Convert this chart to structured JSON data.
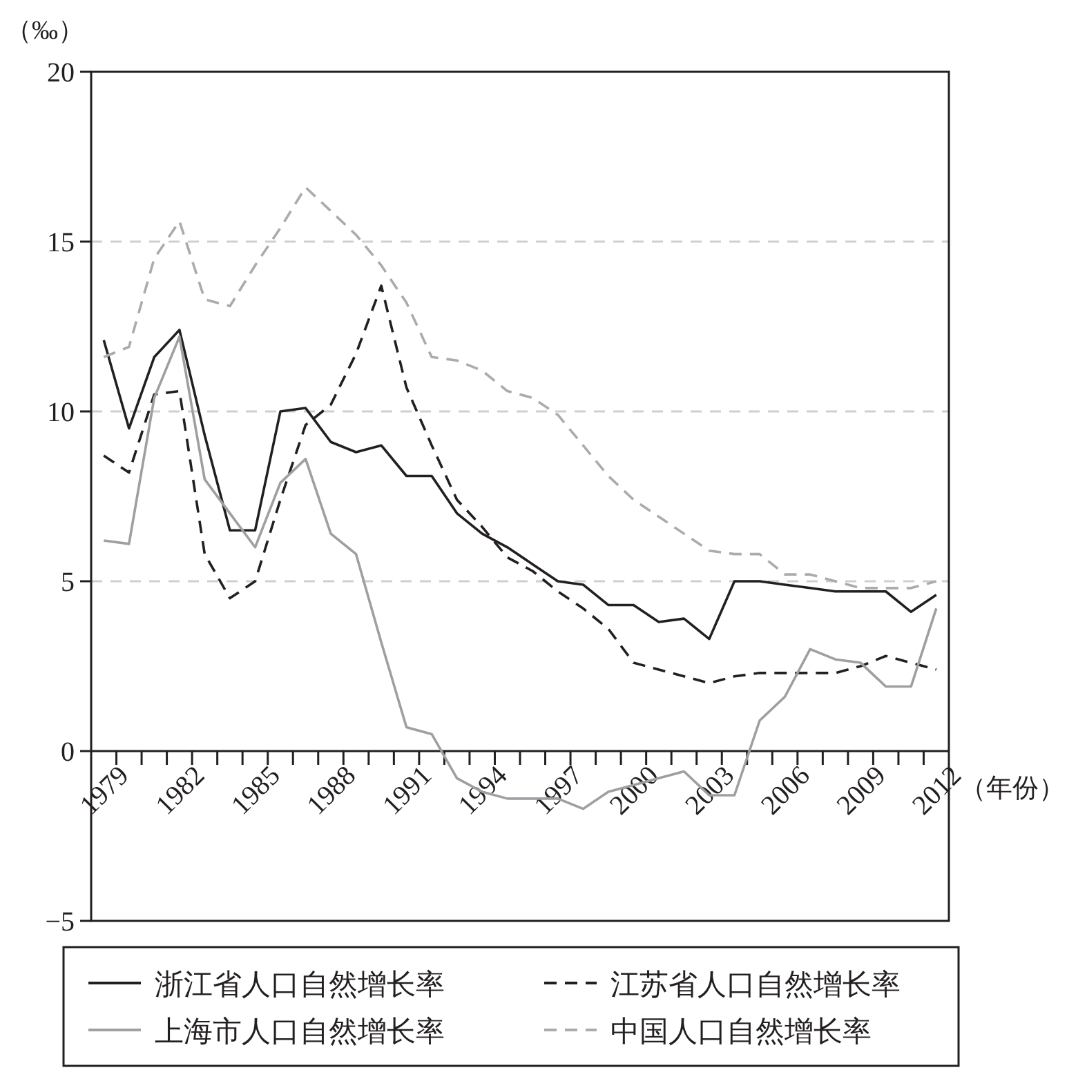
{
  "chart_data": {
    "type": "line",
    "ylabel": "（‰）",
    "xlabel": "（年份）",
    "categories": [
      "1979",
      null,
      null,
      "1982",
      null,
      null,
      "1985",
      null,
      null,
      "1988",
      null,
      null,
      "1991",
      null,
      null,
      "1994",
      null,
      null,
      "1997",
      null,
      null,
      "2000",
      null,
      null,
      "2003",
      null,
      null,
      "2006",
      null,
      null,
      "2009",
      null,
      null,
      "2012"
    ],
    "series": [
      {
        "name": "浙江省人口自然增长率",
        "color": "#231f20",
        "line_style": "solid",
        "values": [
          12.1,
          9.5,
          11.6,
          12.4,
          9.3,
          6.5,
          6.5,
          10.0,
          10.1,
          9.1,
          8.8,
          9.0,
          8.1,
          8.1,
          7.0,
          6.4,
          6.0,
          5.5,
          5.0,
          4.9,
          4.3,
          4.3,
          3.8,
          3.9,
          3.3,
          5.0,
          5.0,
          4.9,
          4.8,
          4.7,
          4.7,
          4.7,
          4.1,
          4.6
        ]
      },
      {
        "name": "江苏省人口自然增长率",
        "color": "#231f20",
        "line_style": "dashed",
        "values": [
          8.7,
          8.2,
          10.5,
          10.6,
          5.8,
          4.5,
          5.0,
          7.4,
          9.6,
          10.2,
          11.7,
          13.7,
          10.7,
          9.0,
          7.4,
          6.6,
          5.7,
          5.3,
          4.7,
          4.2,
          3.6,
          2.6,
          2.4,
          2.2,
          2.0,
          2.2,
          2.3,
          2.3,
          2.3,
          2.3,
          2.5,
          2.8,
          2.6,
          2.4
        ]
      },
      {
        "name": "上海市人口自然增长率",
        "color": "#9d9fa2",
        "line_style": "solid",
        "values": [
          6.2,
          6.1,
          10.4,
          12.2,
          8.0,
          7.0,
          6.0,
          7.9,
          8.6,
          6.4,
          5.8,
          3.2,
          0.7,
          0.5,
          -0.8,
          -1.2,
          -1.4,
          -1.4,
          -1.4,
          -1.7,
          -1.2,
          -1.0,
          -0.8,
          -0.6,
          -1.3,
          -1.3,
          0.9,
          1.6,
          3.0,
          2.7,
          2.6,
          1.9,
          1.9,
          4.2
        ]
      },
      {
        "name": "中国人口自然增长率",
        "color": "#a9abae",
        "line_style": "dashed",
        "values": [
          11.6,
          11.9,
          14.5,
          15.6,
          13.3,
          13.1,
          14.3,
          15.4,
          16.6,
          15.9,
          15.2,
          14.3,
          13.2,
          11.6,
          11.5,
          11.2,
          10.6,
          10.4,
          9.9,
          9.0,
          8.1,
          7.4,
          6.9,
          6.4,
          5.9,
          5.8,
          5.8,
          5.2,
          5.2,
          5.0,
          4.8,
          4.8,
          4.8,
          5.0
        ]
      }
    ],
    "ylim": [
      -5,
      20
    ],
    "yticks": [
      -5,
      0,
      5,
      10,
      15,
      20
    ],
    "grid": "y",
    "legend": "bottom"
  }
}
